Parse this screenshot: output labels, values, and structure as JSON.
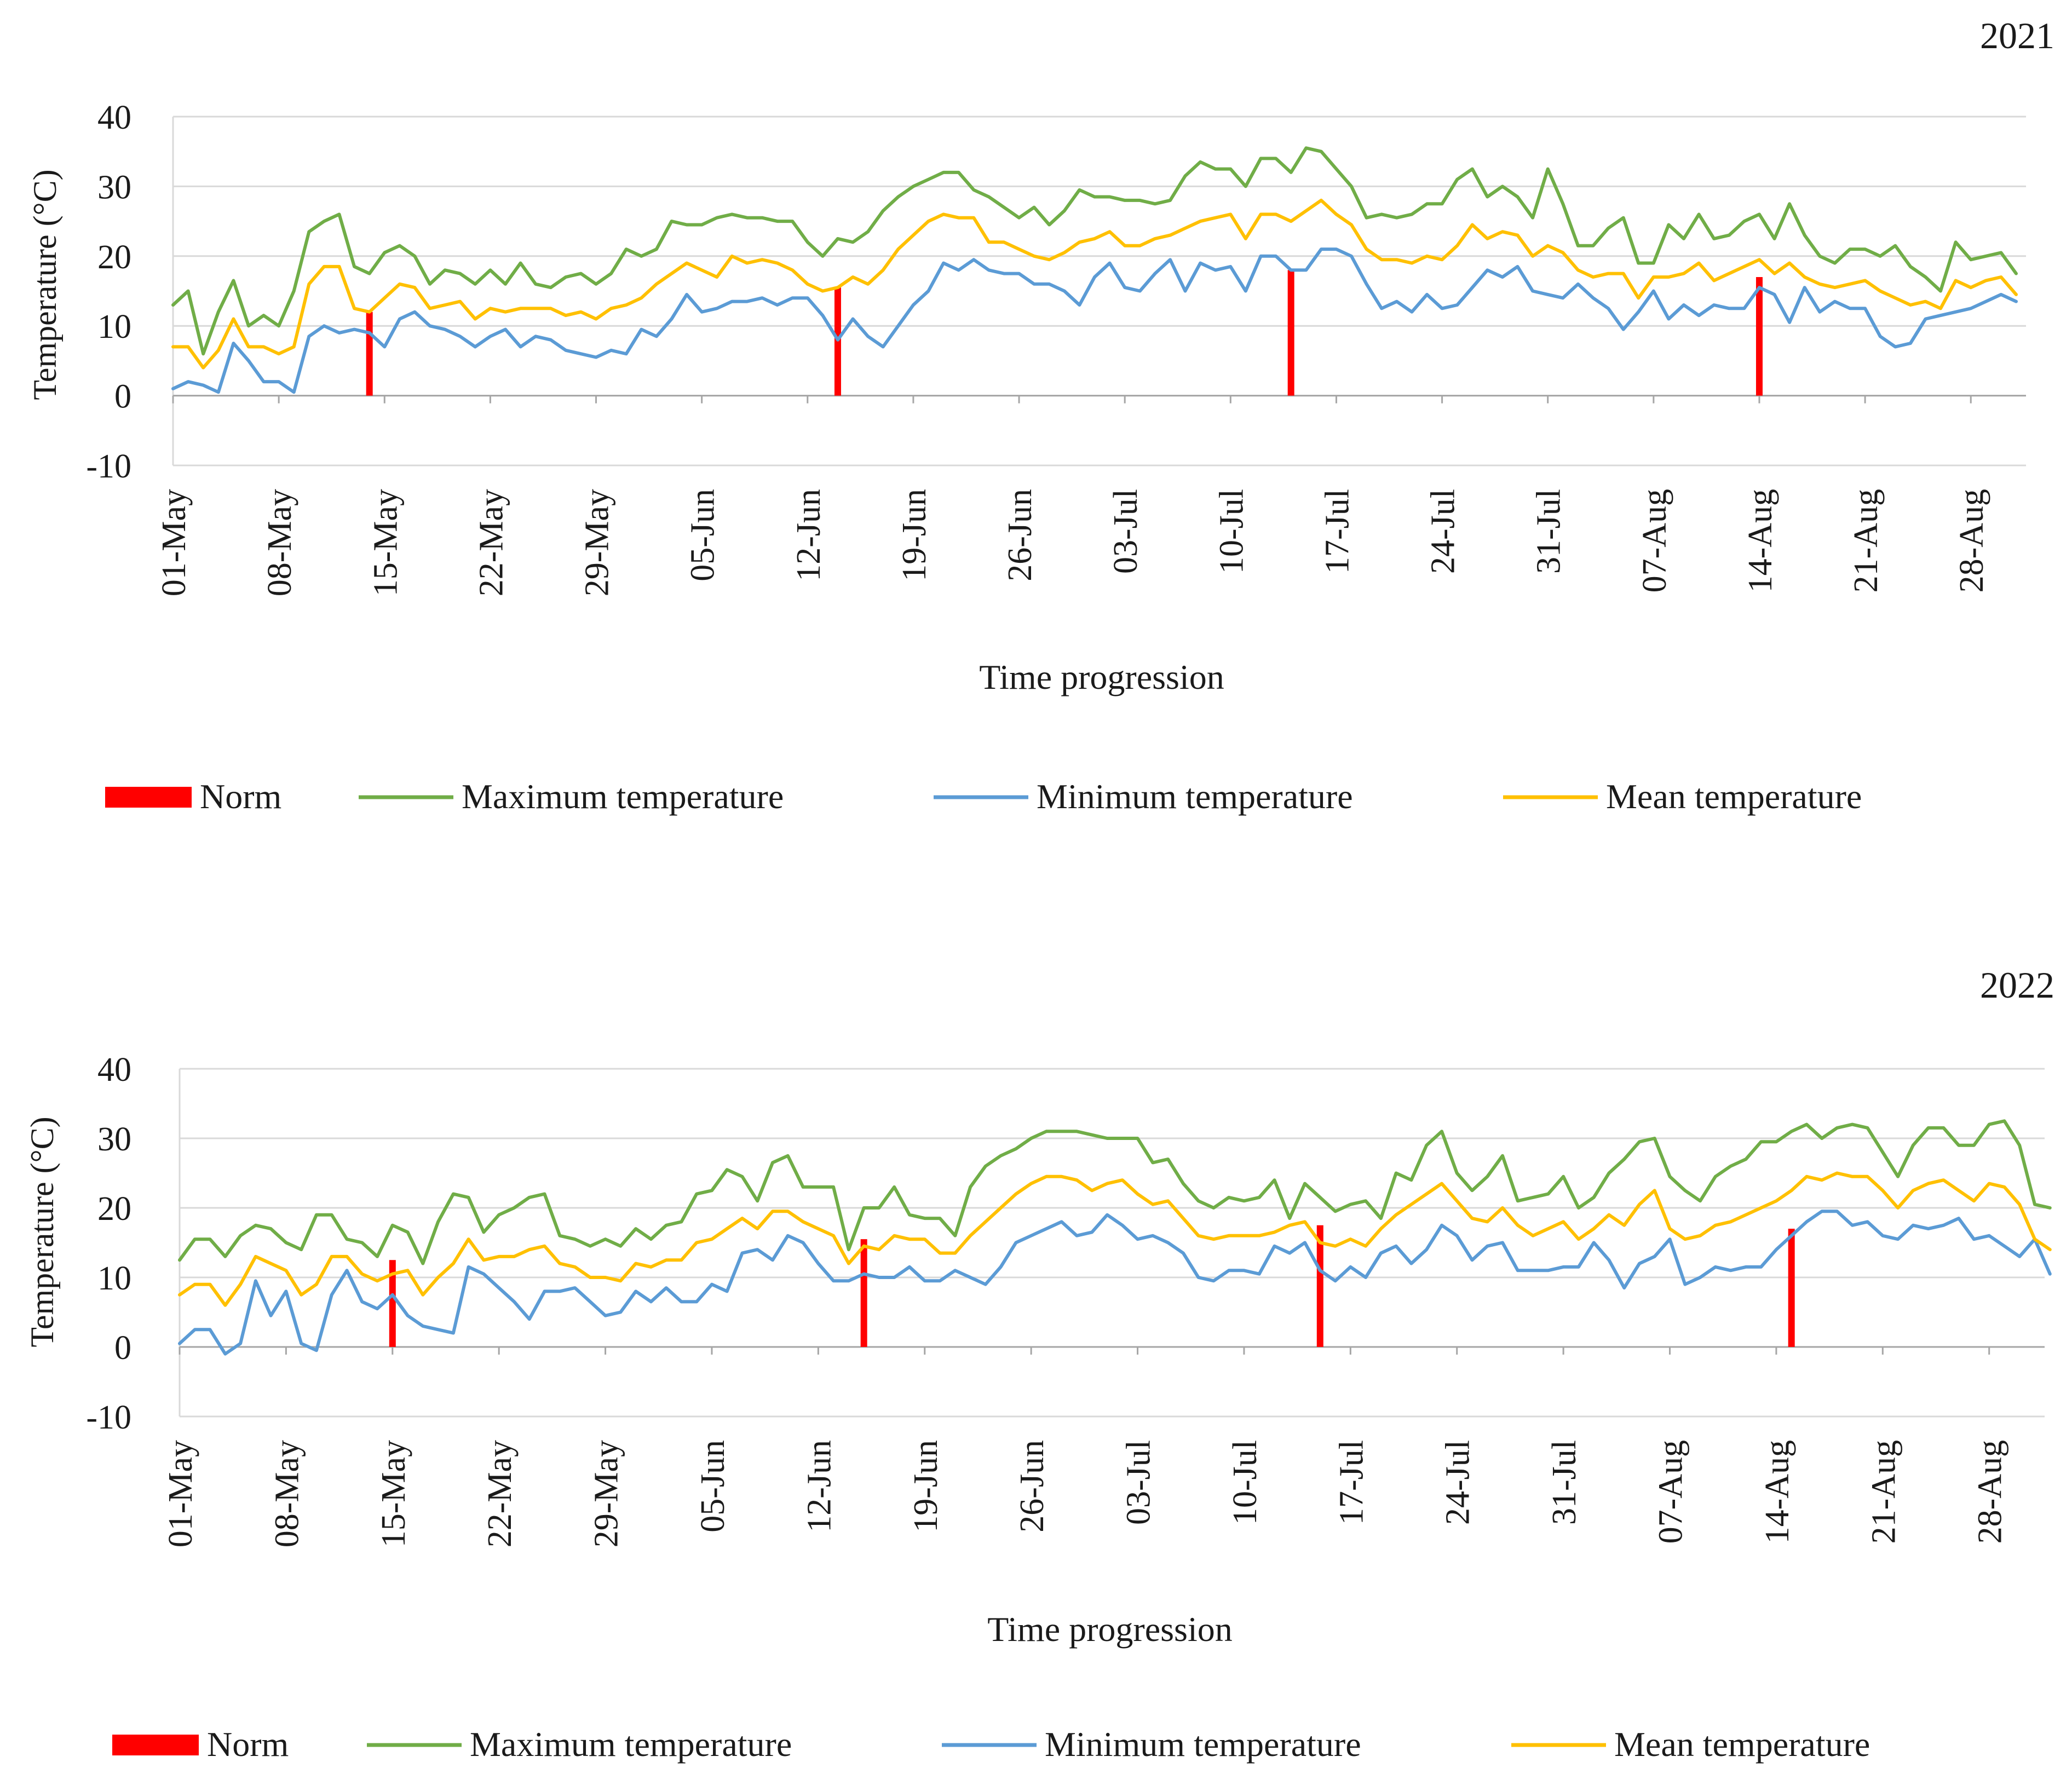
{
  "colors": {
    "norm": "#ff0000",
    "max": "#70ad47",
    "min": "#5b9bd5",
    "mean": "#ffc000",
    "grid": "#d9d9d9",
    "axis": "#a6a6a6",
    "text": "#1a1a1a"
  },
  "chart_data": [
    {
      "type": "line",
      "title": "2021",
      "xlabel": "Time progression",
      "ylabel": "Temperature (°C)",
      "ylim": [
        -10,
        40
      ],
      "yticks": [
        "40",
        "30",
        "20",
        "10",
        "0",
        "-10"
      ],
      "grid": true,
      "legend_position": "bottom",
      "legend": [
        "Norm",
        "Maximum temperature",
        "Minimum temperature",
        "Mean temperature"
      ],
      "x_start": "01-May",
      "n_days": 123,
      "x_tick_labels": [
        "01-May",
        "08-May",
        "15-May",
        "22-May",
        "29-May",
        "05-Jun",
        "12-Jun",
        "19-Jun",
        "26-Jun",
        "03-Jul",
        "10-Jul",
        "17-Jul",
        "24-Jul",
        "31-Jul",
        "07-Aug",
        "14-Aug",
        "21-Aug",
        "28-Aug"
      ],
      "norm": [
        {
          "date": "14-May",
          "value": 12
        },
        {
          "date": "14-Jun",
          "value": 15.5
        },
        {
          "date": "14-Jul",
          "value": 18
        },
        {
          "date": "14-Aug",
          "value": 17
        }
      ],
      "series": [
        {
          "name": "Maximum temperature",
          "key": "max",
          "values": [
            13,
            15,
            6,
            12,
            16.5,
            10,
            11.5,
            10,
            15,
            23.5,
            25,
            26,
            18.5,
            17.5,
            20.5,
            21.5,
            20,
            16,
            18,
            17.5,
            16,
            18,
            16,
            19,
            16,
            15.5,
            17,
            17.5,
            16,
            17.5,
            21,
            20,
            21,
            25,
            24.5,
            24.5,
            25.5,
            26,
            25.5,
            25.5,
            25,
            25,
            22,
            20,
            22.5,
            22,
            23.5,
            26.5,
            28.5,
            30,
            31,
            32,
            32,
            29.5,
            28.5,
            27,
            25.5,
            27,
            24.5,
            26.5,
            29.5,
            28.5,
            28.5,
            28,
            28,
            27.5,
            28,
            31.5,
            33.5,
            32.5,
            32.5,
            30,
            34,
            34,
            32,
            35.5,
            35,
            32.5,
            30,
            25.5,
            26,
            25.5,
            26,
            27.5,
            27.5,
            31,
            32.5,
            28.5,
            30,
            28.5,
            25.5,
            32.5,
            27.5,
            21.5,
            21.5,
            24,
            25.5,
            19,
            19,
            24.5,
            22.5,
            26,
            22.5,
            23,
            25,
            26,
            22.5,
            27.5,
            23,
            20,
            19,
            21,
            21,
            20,
            21.5,
            18.5,
            17,
            15,
            22,
            19.5,
            20,
            20.5,
            17.5
          ]
        },
        {
          "name": "Minimum temperature",
          "key": "min",
          "values": [
            1,
            2,
            1.5,
            0.5,
            7.5,
            5,
            2,
            2,
            0.5,
            8.5,
            10,
            9,
            9.5,
            9,
            7,
            11,
            12,
            10,
            9.5,
            8.5,
            7,
            8.5,
            9.5,
            7,
            8.5,
            8,
            6.5,
            6,
            5.5,
            6.5,
            6,
            9.5,
            8.5,
            11,
            14.5,
            12,
            12.5,
            13.5,
            13.5,
            14,
            13,
            14,
            14,
            11.5,
            8,
            11,
            8.5,
            7,
            10,
            13,
            15,
            19,
            18,
            19.5,
            18,
            17.5,
            17.5,
            16,
            16,
            15,
            13,
            17,
            19,
            15.5,
            15,
            17.5,
            19.5,
            15,
            19,
            18,
            18.5,
            15,
            20,
            20,
            18,
            18,
            21,
            21,
            20,
            16,
            12.5,
            13.5,
            12,
            14.5,
            12.5,
            13,
            15.5,
            18,
            17,
            18.5,
            15,
            14.5,
            14,
            16,
            14,
            12.5,
            9.5,
            12,
            15,
            11,
            13,
            11.5,
            13,
            12.5,
            12.5,
            15.5,
            14.5,
            10.5,
            15.5,
            12,
            13.5,
            12.5,
            12.5,
            8.5,
            7,
            7.5,
            11,
            11.5,
            12,
            12.5,
            13.5,
            14.5,
            13.5
          ]
        },
        {
          "name": "Mean temperature",
          "key": "mean",
          "values": [
            7,
            7,
            4,
            6.5,
            11,
            7,
            7,
            6,
            7,
            16,
            18.5,
            18.5,
            12.5,
            12,
            14,
            16,
            15.5,
            12.5,
            13,
            13.5,
            11,
            12.5,
            12,
            12.5,
            12.5,
            12.5,
            11.5,
            12,
            11,
            12.5,
            13,
            14,
            16,
            17.5,
            19,
            18,
            17,
            20,
            19,
            19.5,
            19,
            18,
            16,
            15,
            15.5,
            17,
            16,
            18,
            21,
            23,
            25,
            26,
            25.5,
            25.5,
            22,
            22,
            21,
            20,
            19.5,
            20.5,
            22,
            22.5,
            23.5,
            21.5,
            21.5,
            22.5,
            23,
            24,
            25,
            25.5,
            26,
            22.5,
            26,
            26,
            25,
            26.5,
            28,
            26,
            24.5,
            21,
            19.5,
            19.5,
            19,
            20,
            19.5,
            21.5,
            24.5,
            22.5,
            23.5,
            23,
            20,
            21.5,
            20.5,
            18,
            17,
            17.5,
            17.5,
            14,
            17,
            17,
            17.5,
            19,
            16.5,
            17.5,
            18.5,
            19.5,
            17.5,
            19,
            17,
            16,
            15.5,
            16,
            16.5,
            15,
            14,
            13,
            13.5,
            12.5,
            16.5,
            15.5,
            16.5,
            17,
            14.5
          ]
        }
      ]
    },
    {
      "type": "line",
      "title": "2022",
      "xlabel": "Time progression",
      "ylabel": "Temperature (°C)",
      "ylim": [
        -10,
        40
      ],
      "yticks": [
        "40",
        "30",
        "20",
        "10",
        "0",
        "-10"
      ],
      "grid": true,
      "legend_position": "bottom",
      "legend": [
        "Norm",
        "Maximum temperature",
        "Minimum temperature",
        "Mean temperature"
      ],
      "x_start": "01-May",
      "n_days": 123,
      "x_tick_labels": [
        "01-May",
        "08-May",
        "15-May",
        "22-May",
        "29-May",
        "05-Jun",
        "12-Jun",
        "19-Jun",
        "26-Jun",
        "03-Jul",
        "10-Jul",
        "17-Jul",
        "24-Jul",
        "31-Jul",
        "07-Aug",
        "14-Aug",
        "21-Aug",
        "28-Aug"
      ],
      "norm": [
        {
          "date": "15-May",
          "value": 12.5
        },
        {
          "date": "15-Jun",
          "value": 15.5
        },
        {
          "date": "15-Jul",
          "value": 17.5
        },
        {
          "date": "15-Aug",
          "value": 17
        }
      ],
      "series": [
        {
          "name": "Maximum temperature",
          "key": "max",
          "values": [
            12.5,
            15.5,
            15.5,
            13,
            16,
            17.5,
            17,
            15,
            14,
            19,
            19,
            15.5,
            15,
            13,
            17.5,
            16.5,
            12,
            18,
            22,
            21.5,
            16.5,
            19,
            20,
            21.5,
            22,
            16,
            15.5,
            14.5,
            15.5,
            14.5,
            17,
            15.5,
            17.5,
            18,
            22,
            22.5,
            25.5,
            24.5,
            21,
            26.5,
            27.5,
            23,
            23,
            23,
            14,
            20,
            20,
            23,
            19,
            18.5,
            18.5,
            16,
            23,
            26,
            27.5,
            28.5,
            30,
            31,
            31,
            31,
            30.5,
            30,
            30,
            30,
            26.5,
            27,
            23.5,
            21,
            20,
            21.5,
            21,
            21.5,
            24,
            18.5,
            23.5,
            21.5,
            19.5,
            20.5,
            21,
            18.5,
            25,
            24,
            29,
            31,
            25,
            22.5,
            24.5,
            27.5,
            21,
            21.5,
            22,
            24.5,
            20,
            21.5,
            25,
            27,
            29.5,
            30,
            24.5,
            22.5,
            21,
            24.5,
            26,
            27,
            29.5,
            29.5,
            31,
            32,
            30,
            31.5,
            32,
            31.5,
            28,
            24.5,
            29,
            31.5,
            31.5,
            29,
            29,
            32,
            32.5,
            29,
            20.5,
            20
          ]
        },
        {
          "name": "Minimum temperature",
          "key": "min",
          "values": [
            0.5,
            2.5,
            2.5,
            -1,
            0.5,
            9.5,
            4.5,
            8,
            0.5,
            -0.5,
            7.5,
            11,
            6.5,
            5.5,
            7.5,
            4.5,
            3,
            2.5,
            2,
            11.5,
            10.5,
            8.5,
            6.5,
            4,
            8,
            8,
            8.5,
            6.5,
            4.5,
            5,
            8,
            6.5,
            8.5,
            6.5,
            6.5,
            9,
            8,
            13.5,
            14,
            12.5,
            16,
            15,
            12,
            9.5,
            9.5,
            10.5,
            10,
            10,
            11.5,
            9.5,
            9.5,
            11,
            10,
            9,
            11.5,
            15,
            16,
            17,
            18,
            16,
            16.5,
            19,
            17.5,
            15.5,
            16,
            15,
            13.5,
            10,
            9.5,
            11,
            11,
            10.5,
            14.5,
            13.5,
            15,
            11,
            9.5,
            11.5,
            10,
            13.5,
            14.5,
            12,
            14,
            17.5,
            16,
            12.5,
            14.5,
            15,
            11,
            11,
            11,
            11.5,
            11.5,
            15,
            12.5,
            8.5,
            12,
            13,
            15.5,
            9,
            10,
            11.5,
            11,
            11.5,
            11.5,
            14,
            16,
            18,
            19.5,
            19.5,
            17.5,
            18,
            16,
            15.5,
            17.5,
            17,
            17.5,
            18.5,
            15.5,
            16,
            14.5,
            13,
            15.5,
            10.5
          ]
        },
        {
          "name": "Mean temperature",
          "key": "mean",
          "values": [
            7.5,
            9,
            9,
            6,
            9,
            13,
            12,
            11,
            7.5,
            9,
            13,
            13,
            10.5,
            9.5,
            10.5,
            11,
            7.5,
            10,
            12,
            15.5,
            12.5,
            13,
            13,
            14,
            14.5,
            12,
            11.5,
            10,
            10,
            9.5,
            12,
            11.5,
            12.5,
            12.5,
            15,
            15.5,
            17,
            18.5,
            17,
            19.5,
            19.5,
            18,
            17,
            16,
            12,
            14.5,
            14,
            16,
            15.5,
            15.5,
            13.5,
            13.5,
            16,
            18,
            20,
            22,
            23.5,
            24.5,
            24.5,
            24,
            22.5,
            23.5,
            24,
            22,
            20.5,
            21,
            18.5,
            16,
            15.5,
            16,
            16,
            16,
            16.5,
            17.5,
            18,
            15,
            14.5,
            15.5,
            14.5,
            17,
            19,
            20.5,
            22,
            23.5,
            21,
            18.5,
            18,
            20,
            17.5,
            16,
            17,
            18,
            15.5,
            17,
            19,
            17.5,
            20.5,
            22.5,
            17,
            15.5,
            16,
            17.5,
            18,
            19,
            20,
            21,
            22.5,
            24.5,
            24,
            25,
            24.5,
            24.5,
            22.5,
            20,
            22.5,
            23.5,
            24,
            22.5,
            21,
            23.5,
            23,
            20.5,
            15.5,
            14
          ]
        }
      ]
    }
  ]
}
